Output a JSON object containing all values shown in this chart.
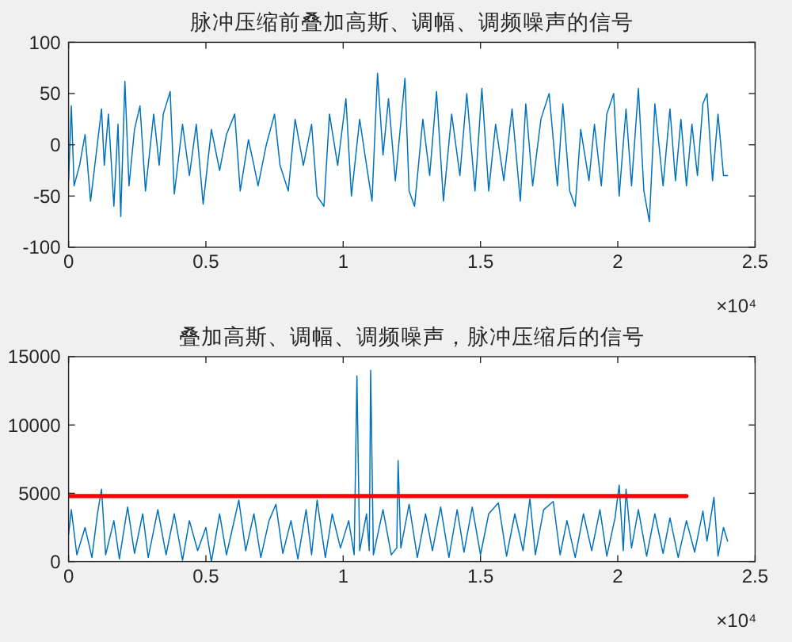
{
  "chart_data": [
    {
      "type": "line",
      "title": "脉冲压缩前叠加高斯、调幅、调频噪声的信号",
      "x": [
        0,
        0.01,
        0.02,
        0.04,
        0.06,
        0.08,
        0.1,
        0.12,
        0.13,
        0.145,
        0.165,
        0.18,
        0.19,
        0.205,
        0.22,
        0.24,
        0.26,
        0.28,
        0.31,
        0.33,
        0.345,
        0.37,
        0.385,
        0.415,
        0.44,
        0.465,
        0.49,
        0.52,
        0.55,
        0.575,
        0.605,
        0.625,
        0.655,
        0.675,
        0.69,
        0.72,
        0.75,
        0.77,
        0.8,
        0.825,
        0.855,
        0.885,
        0.905,
        0.93,
        0.95,
        0.98,
        1.01,
        1.03,
        1.06,
        1.085,
        1.105,
        1.125,
        1.145,
        1.165,
        1.19,
        1.225,
        1.24,
        1.26,
        1.29,
        1.315,
        1.34,
        1.365,
        1.395,
        1.425,
        1.45,
        1.48,
        1.505,
        1.53,
        1.555,
        1.585,
        1.615,
        1.645,
        1.665,
        1.69,
        1.72,
        1.75,
        1.78,
        1.8,
        1.825,
        1.845,
        1.865,
        1.895,
        1.915,
        1.94,
        1.96,
        1.985,
        2.005,
        2.03,
        2.05,
        2.075,
        2.095,
        2.115,
        2.135,
        2.165,
        2.19,
        2.21,
        2.23,
        2.25,
        2.27,
        2.29,
        2.31,
        2.325,
        2.345,
        2.365,
        2.385,
        2.4
      ],
      "series": [
        {
          "color": "#0072bd",
          "values": [
            -35,
            38,
            -40,
            -20,
            10,
            -55,
            -10,
            35,
            -20,
            30,
            -60,
            20,
            -70,
            62,
            -40,
            15,
            38,
            -45,
            30,
            -20,
            30,
            52,
            -48,
            20,
            -30,
            20,
            -58,
            15,
            -25,
            10,
            30,
            -45,
            5,
            -20,
            -40,
            0,
            30,
            -20,
            -45,
            25,
            -20,
            20,
            -50,
            -60,
            30,
            -20,
            45,
            -50,
            25,
            -20,
            -55,
            70,
            -10,
            45,
            -35,
            65,
            -45,
            -60,
            25,
            -30,
            52,
            -55,
            30,
            -30,
            50,
            -45,
            55,
            -45,
            20,
            -35,
            35,
            -55,
            40,
            -40,
            25,
            50,
            -40,
            40,
            -45,
            -60,
            15,
            -35,
            20,
            -40,
            30,
            50,
            -50,
            35,
            -40,
            55,
            -45,
            -75,
            40,
            -40,
            35,
            -35,
            25,
            -40,
            20,
            -30,
            40,
            50,
            -35,
            30,
            -30,
            -30
          ]
        }
      ],
      "xlim": [
        0,
        2.5
      ],
      "xticks": [
        0,
        0.5,
        1,
        1.5,
        2,
        2.5
      ],
      "ylim": [
        -100,
        100
      ],
      "yticks": [
        -100,
        -50,
        0,
        50,
        100
      ],
      "annotations": [
        "×10⁴"
      ]
    },
    {
      "type": "line",
      "title": "叠加高斯、调幅、调频噪声，脉冲压缩后的信号",
      "x": [
        0,
        0.01,
        0.03,
        0.06,
        0.085,
        0.105,
        0.12,
        0.135,
        0.165,
        0.185,
        0.215,
        0.24,
        0.27,
        0.29,
        0.325,
        0.355,
        0.385,
        0.415,
        0.44,
        0.47,
        0.5,
        0.52,
        0.55,
        0.575,
        0.62,
        0.645,
        0.675,
        0.7,
        0.73,
        0.755,
        0.78,
        0.81,
        0.835,
        0.865,
        0.885,
        0.905,
        0.935,
        0.96,
        0.99,
        1.02,
        1.04,
        1.05,
        1.06,
        1.085,
        1.095,
        1.1,
        1.11,
        1.145,
        1.175,
        1.195,
        1.2,
        1.21,
        1.24,
        1.27,
        1.3,
        1.325,
        1.355,
        1.385,
        1.415,
        1.44,
        1.47,
        1.5,
        1.53,
        1.565,
        1.595,
        1.625,
        1.655,
        1.68,
        1.7,
        1.73,
        1.765,
        1.79,
        1.815,
        1.845,
        1.875,
        1.905,
        1.935,
        1.96,
        1.99,
        2.005,
        2.02,
        2.03,
        2.05,
        2.075,
        2.105,
        2.135,
        2.165,
        2.19,
        2.22,
        2.25,
        2.28,
        2.31,
        2.325,
        2.35,
        2.365,
        2.385,
        2.4
      ],
      "series": [
        {
          "color": "#0072bd",
          "values": [
            2000,
            3800,
            500,
            2500,
            300,
            3500,
            5300,
            500,
            3000,
            200,
            4000,
            600,
            3500,
            300,
            3800,
            500,
            3500,
            100,
            3000,
            800,
            2500,
            0,
            3500,
            500,
            4500,
            800,
            3500,
            300,
            3000,
            4200,
            600,
            3000,
            200,
            3800,
            500,
            4500,
            300,
            3500,
            1000,
            3000,
            500,
            13600,
            800,
            3500,
            800,
            14000,
            500,
            3800,
            500,
            1000,
            7400,
            1000,
            4200,
            300,
            3500,
            800,
            4000,
            300,
            3800,
            700,
            4000,
            500,
            3500,
            4300,
            400,
            3500,
            800,
            4600,
            500,
            3800,
            4400,
            500,
            3000,
            300,
            3500,
            800,
            3800,
            400,
            3200,
            5600,
            800,
            5300,
            1000,
            3800,
            400,
            3500,
            600,
            3200,
            300,
            3000,
            700,
            3700,
            1500,
            4700,
            400,
            2500,
            1500
          ]
        },
        {
          "type": "line",
          "color": "#ff0000",
          "x": [
            0,
            2.25
          ],
          "values": [
            4800,
            4800
          ]
        }
      ],
      "xlim": [
        0,
        2.5
      ],
      "xticks": [
        0,
        0.5,
        1,
        1.5,
        2,
        2.5
      ],
      "ylim": [
        0,
        15000
      ],
      "yticks": [
        0,
        5000,
        10000,
        15000
      ],
      "annotations": [
        "×10⁴"
      ]
    }
  ]
}
